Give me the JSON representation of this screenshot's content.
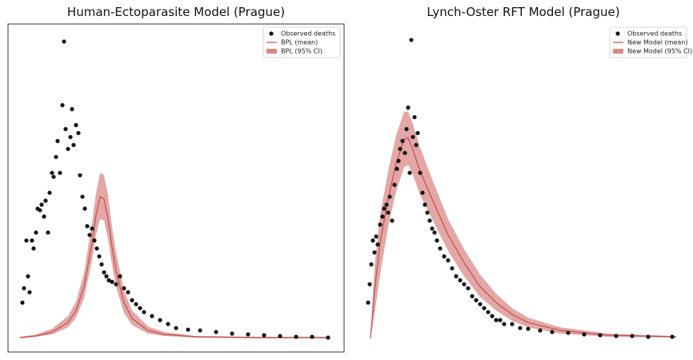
{
  "chart_data": [
    {
      "type": "line",
      "title": "Human-Ectoparasite Model (Prague)",
      "xlim": [
        0,
        390
      ],
      "ylim": [
        0,
        390
      ],
      "frame": true,
      "legend": "upper right",
      "series": [
        {
          "name": "Observed deaths",
          "type": "scatter",
          "color": "#111111",
          "x": [
            3,
            5,
            8,
            12,
            10,
            15,
            17,
            20,
            22,
            25,
            27,
            30,
            32,
            35,
            37,
            40,
            42,
            45,
            47,
            50,
            53,
            55,
            57,
            60,
            63,
            65,
            67,
            70,
            73,
            75,
            78,
            81,
            84,
            87,
            90,
            93,
            96,
            99,
            102,
            105,
            108,
            111,
            115,
            120,
            125,
            130,
            135,
            140,
            145,
            150,
            155,
            165,
            175,
            185,
            195,
            210,
            225,
            245,
            265,
            285,
            305,
            325,
            345,
            365,
            385
          ],
          "values": [
            45,
            63,
            123,
            58,
            78,
            123,
            113,
            133,
            163,
            161,
            168,
            153,
            173,
            133,
            183,
            208,
            203,
            228,
            248,
            208,
            293,
            373,
            263,
            238,
            253,
            288,
            243,
            268,
            258,
            205,
            178,
            163,
            141,
            130,
            138,
            123,
            113,
            103,
            93,
            83,
            78,
            73,
            71,
            68,
            78,
            63,
            58,
            48,
            43,
            38,
            33,
            28,
            23,
            18,
            13,
            11,
            10,
            8,
            6,
            5,
            4,
            3,
            2,
            2,
            1
          ]
        },
        {
          "name": "BPL (mean)",
          "type": "line",
          "color": "#c0504d",
          "x": [
            0,
            20,
            40,
            60,
            70,
            80,
            90,
            95,
            100,
            105,
            110,
            115,
            120,
            130,
            140,
            160,
            180,
            220,
            300,
            385
          ],
          "values": [
            1,
            3,
            8,
            20,
            35,
            65,
            120,
            155,
            178,
            175,
            150,
            115,
            85,
            45,
            25,
            10,
            5,
            2,
            1,
            1
          ]
        },
        {
          "name": "BPL (95% CI)",
          "type": "band",
          "color": "#d98a88",
          "x": [
            0,
            20,
            40,
            60,
            70,
            80,
            90,
            95,
            100,
            105,
            110,
            115,
            120,
            130,
            140,
            160,
            180,
            220,
            300,
            385
          ],
          "lower": [
            0,
            2,
            5,
            14,
            26,
            50,
            98,
            130,
            150,
            148,
            125,
            92,
            65,
            32,
            17,
            6,
            3,
            1,
            0,
            0
          ],
          "upper": [
            2,
            5,
            12,
            28,
            46,
            82,
            145,
            182,
            208,
            205,
            180,
            140,
            108,
            60,
            35,
            15,
            8,
            3,
            2,
            2
          ]
        }
      ]
    },
    {
      "type": "line",
      "title": "Lynch-Oster RFT Model (Prague)",
      "xlim": [
        0,
        390
      ],
      "ylim": [
        0,
        390
      ],
      "frame": false,
      "legend": "upper right",
      "series": [
        {
          "name": "Observed deaths",
          "type": "scatter",
          "color": "#111111",
          "x": [
            0,
            2,
            4,
            6,
            8,
            10,
            12,
            15,
            18,
            20,
            23,
            25,
            27,
            30,
            33,
            36,
            38,
            40,
            43,
            46,
            48,
            50,
            52,
            54,
            56,
            58,
            60,
            62,
            65,
            68,
            71,
            74,
            77,
            80,
            83,
            86,
            90,
            95,
            100,
            105,
            110,
            115,
            120,
            125,
            130,
            135,
            140,
            145,
            150,
            155,
            160,
            165,
            170,
            180,
            190,
            200,
            215,
            230,
            250,
            270,
            290,
            310,
            330,
            350,
            380
          ],
          "values": [
            45,
            68,
            93,
            123,
            108,
            128,
            118,
            143,
            153,
            163,
            168,
            158,
            178,
            148,
            193,
            213,
            223,
            238,
            248,
            233,
            263,
            290,
            208,
            375,
            253,
            278,
            243,
            258,
            208,
            183,
            168,
            158,
            148,
            138,
            133,
            123,
            113,
            103,
            98,
            88,
            78,
            73,
            68,
            63,
            53,
            48,
            43,
            38,
            33,
            28,
            23,
            23,
            18,
            18,
            13,
            12,
            10,
            8,
            7,
            5,
            4,
            3,
            3,
            2,
            2
          ]
        },
        {
          "name": "New Model (mean)",
          "type": "line",
          "color": "#c0504d",
          "x": [
            3,
            8,
            15,
            25,
            35,
            45,
            50,
            55,
            65,
            80,
            100,
            120,
            140,
            160,
            180,
            200,
            240,
            300,
            385
          ],
          "values": [
            0,
            60,
            120,
            175,
            220,
            250,
            252,
            240,
            210,
            175,
            130,
            95,
            65,
            45,
            30,
            20,
            10,
            4,
            2
          ]
        },
        {
          "name": "New Model (95% CI)",
          "type": "band",
          "color": "#d98a88",
          "x": [
            3,
            8,
            15,
            25,
            35,
            45,
            50,
            55,
            65,
            80,
            100,
            120,
            140,
            160,
            180,
            200,
            240,
            300,
            385
          ],
          "lower": [
            0,
            30,
            80,
            140,
            185,
            215,
            218,
            208,
            180,
            150,
            110,
            78,
            52,
            35,
            22,
            14,
            6,
            2,
            1
          ],
          "upper": [
            2,
            90,
            155,
            210,
            255,
            285,
            285,
            272,
            240,
            200,
            150,
            112,
            80,
            56,
            38,
            26,
            14,
            6,
            3
          ]
        }
      ]
    }
  ]
}
